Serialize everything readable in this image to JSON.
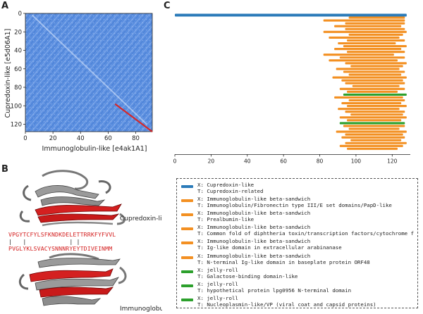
{
  "panels": {
    "a": "A",
    "b": "B",
    "c": "C"
  },
  "colors": {
    "blue": "#2b7bb9",
    "orange": "#f39022",
    "green": "#2ca02c",
    "red": "#d62728"
  },
  "panel_b": {
    "top_label": "Cupredoxin-like",
    "bottom_label": "Immunoglobulin-like",
    "seq_top": "VPGYTCFYLSFKNDKDELETTRRKFYFVVL",
    "seq_mid": "|   |            | |",
    "seq_bottom": "PVGLYKLSVACYSNNNRYEYTDIVEINMM"
  },
  "chart_data": [
    {
      "type": "heatmap",
      "title": "",
      "xlabel": "Immunoglobulin-like [e4ak1A1]",
      "ylabel": "Cupredoxin-like [e5d06A1]",
      "x_ticks": [
        0,
        20,
        40,
        60,
        80
      ],
      "y_ticks": [
        0,
        20,
        40,
        60,
        80,
        100,
        120
      ],
      "xlim": [
        0,
        92
      ],
      "ylim": [
        0,
        128
      ],
      "y_inverted": true,
      "alignment_path": {
        "color": "#d62728",
        "x": [
          65,
          92
        ],
        "y": [
          98,
          128
        ]
      }
    },
    {
      "type": "bar",
      "orientation": "horizontal",
      "title": "",
      "xlabel": "",
      "ylabel": "",
      "x_ticks": [
        0,
        20,
        40,
        60,
        80,
        100,
        120
      ],
      "xlim": [
        0,
        130
      ],
      "segments": [
        {
          "start": 0,
          "end": 128,
          "color": "blue"
        },
        {
          "start": 96,
          "end": 127,
          "color": "orange"
        },
        {
          "start": 82,
          "end": 127,
          "color": "orange"
        },
        {
          "start": 94,
          "end": 127,
          "color": "orange"
        },
        {
          "start": 88,
          "end": 125,
          "color": "orange"
        },
        {
          "start": 94,
          "end": 127,
          "color": "orange"
        },
        {
          "start": 82,
          "end": 128,
          "color": "orange"
        },
        {
          "start": 96,
          "end": 126,
          "color": "orange"
        },
        {
          "start": 85,
          "end": 124,
          "color": "orange"
        },
        {
          "start": 95,
          "end": 127,
          "color": "orange"
        },
        {
          "start": 90,
          "end": 122,
          "color": "orange"
        },
        {
          "start": 93,
          "end": 128,
          "color": "orange"
        },
        {
          "start": 88,
          "end": 125,
          "color": "orange"
        },
        {
          "start": 95,
          "end": 127,
          "color": "orange"
        },
        {
          "start": 82,
          "end": 121,
          "color": "orange"
        },
        {
          "start": 91,
          "end": 127,
          "color": "orange"
        },
        {
          "start": 85,
          "end": 123,
          "color": "orange"
        },
        {
          "start": 94,
          "end": 128,
          "color": "orange"
        },
        {
          "start": 97,
          "end": 126,
          "color": "orange"
        },
        {
          "start": 89,
          "end": 124,
          "color": "orange"
        },
        {
          "start": 93,
          "end": 127,
          "color": "orange"
        },
        {
          "start": 96,
          "end": 125,
          "color": "orange"
        },
        {
          "start": 87,
          "end": 128,
          "color": "orange"
        },
        {
          "start": 92,
          "end": 126,
          "color": "orange"
        },
        {
          "start": 94,
          "end": 127,
          "color": "orange"
        },
        {
          "start": 98,
          "end": 124,
          "color": "orange"
        },
        {
          "start": 91,
          "end": 127,
          "color": "orange"
        },
        {
          "start": 95,
          "end": 123,
          "color": "orange"
        },
        {
          "start": 93,
          "end": 128,
          "color": "green"
        },
        {
          "start": 88,
          "end": 126,
          "color": "orange"
        },
        {
          "start": 96,
          "end": 127,
          "color": "orange"
        },
        {
          "start": 92,
          "end": 125,
          "color": "orange"
        },
        {
          "start": 95,
          "end": 128,
          "color": "orange"
        },
        {
          "start": 90,
          "end": 124,
          "color": "orange"
        },
        {
          "start": 94,
          "end": 127,
          "color": "orange"
        },
        {
          "start": 97,
          "end": 126,
          "color": "orange"
        },
        {
          "start": 91,
          "end": 128,
          "color": "orange"
        },
        {
          "start": 95,
          "end": 125,
          "color": "orange"
        },
        {
          "start": 91,
          "end": 127,
          "color": "green"
        },
        {
          "start": 93,
          "end": 127,
          "color": "orange"
        },
        {
          "start": 96,
          "end": 124,
          "color": "orange"
        },
        {
          "start": 89,
          "end": 128,
          "color": "orange"
        },
        {
          "start": 94,
          "end": 126,
          "color": "orange"
        },
        {
          "start": 92,
          "end": 127,
          "color": "orange"
        },
        {
          "start": 97,
          "end": 125,
          "color": "orange"
        },
        {
          "start": 94,
          "end": 128,
          "color": "orange"
        },
        {
          "start": 91,
          "end": 126,
          "color": "orange"
        },
        {
          "start": 95,
          "end": 123,
          "color": "orange"
        }
      ],
      "legend": [
        {
          "color": "blue",
          "lines": [
            "X: Cupredoxin-like",
            "T: Cupredoxin-related"
          ]
        },
        {
          "color": "orange",
          "lines": [
            "X: Immunoglobulin-like beta-sandwich",
            "T: Immunoglobulin/Fibronectin type III/E set domains/PapD-like"
          ]
        },
        {
          "color": "orange",
          "lines": [
            "X: Immunoglobulin-like beta-sandwich",
            "T: Prealbumin-like"
          ]
        },
        {
          "color": "orange",
          "lines": [
            "X: Immunoglobulin-like beta-sandwich",
            "T: Common fold of diphtheria toxin/transcription factors/cytochrome f"
          ]
        },
        {
          "color": "orange",
          "lines": [
            "X: Immunoglobulin-like beta-sandwich",
            "T: Ig-like domain in extracellular arabinanase"
          ]
        },
        {
          "color": "orange",
          "lines": [
            "X: Immunoglobulin-like beta-sandwich",
            "T: N-terminal Ig-like domain in baseplate protein ORF48"
          ]
        },
        {
          "color": "green",
          "lines": [
            "X: jelly-roll",
            "T: Galactose-binding domain-like"
          ]
        },
        {
          "color": "green",
          "lines": [
            "X: jelly-roll",
            "T: hypothetical protein lpg0956 N-terminal domain"
          ]
        },
        {
          "color": "green",
          "lines": [
            "X: jelly-roll",
            "T: Nucleoplasmin-like/VP (viral coat and capsid proteins)"
          ]
        }
      ]
    }
  ]
}
